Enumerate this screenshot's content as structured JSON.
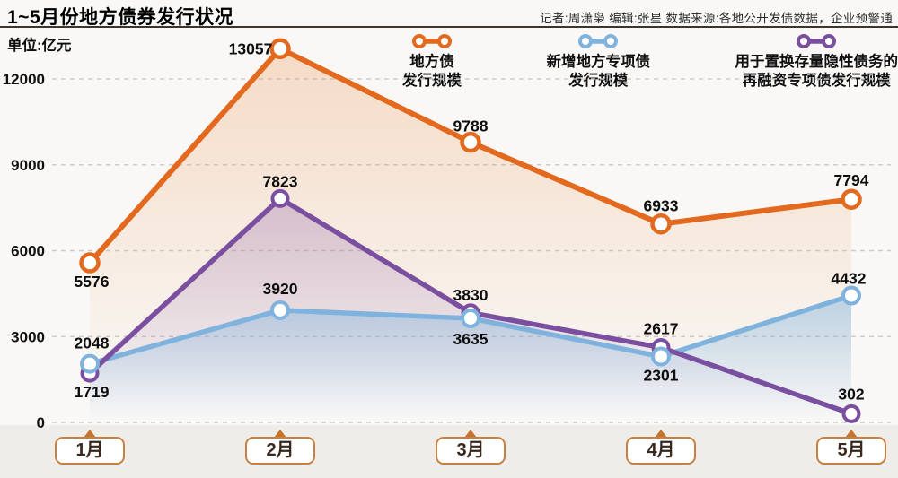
{
  "header": {
    "title": "1~5月份地方债券发行状况",
    "byline": "记者:周潇枭  编辑:张星  数据来源:各地公开发债数据，企业预警通"
  },
  "unit_label": "单位:亿元",
  "colors": {
    "local_bond_orange": "#e2691d",
    "new_special_blue": "#7fb3de",
    "refinancing_purple": "#7b4f9f",
    "gridline": "#cdcccb",
    "month_box_border": "#c9803f",
    "month_triangle": "#c8732c"
  },
  "legend": [
    {
      "name": "地方债发行规模",
      "lines": [
        "地方债",
        "发行规模"
      ],
      "color": "#e2691d"
    },
    {
      "name": "新增地方专项债发行规模",
      "lines": [
        "新增地方专项债",
        "发行规模"
      ],
      "color": "#7fb3de"
    },
    {
      "name": "用于置换存量隐性债务的再融资专项债发行规模",
      "lines": [
        "用于置换存量隐性债务的",
        "再融资专项债发行规模"
      ],
      "color": "#7b4f9f"
    }
  ],
  "chart_data": {
    "type": "line",
    "title": "1~5月份地方债券发行状况",
    "unit": "亿元",
    "categories": [
      "1月",
      "2月",
      "3月",
      "4月",
      "5月"
    ],
    "series": [
      {
        "name": "地方债发行规模",
        "color": "#e2691d",
        "values": [
          5576,
          13057,
          9788,
          6933,
          7794
        ]
      },
      {
        "name": "新增地方专项债发行规模",
        "color": "#7fb3de",
        "values": [
          2048,
          3920,
          3635,
          2301,
          4432
        ]
      },
      {
        "name": "用于置换存量隐性债务的再融资专项债发行规模",
        "color": "#7b4f9f",
        "values": [
          1719,
          7823,
          3830,
          2617,
          302
        ]
      }
    ],
    "yticks": [
      0,
      3000,
      6000,
      9000,
      12000
    ],
    "ylim": [
      0,
      13200
    ],
    "grid": "dashed horizontal",
    "legend_position": "top",
    "markers": "hollow circles",
    "area_fill": "gradient fade below each line"
  }
}
